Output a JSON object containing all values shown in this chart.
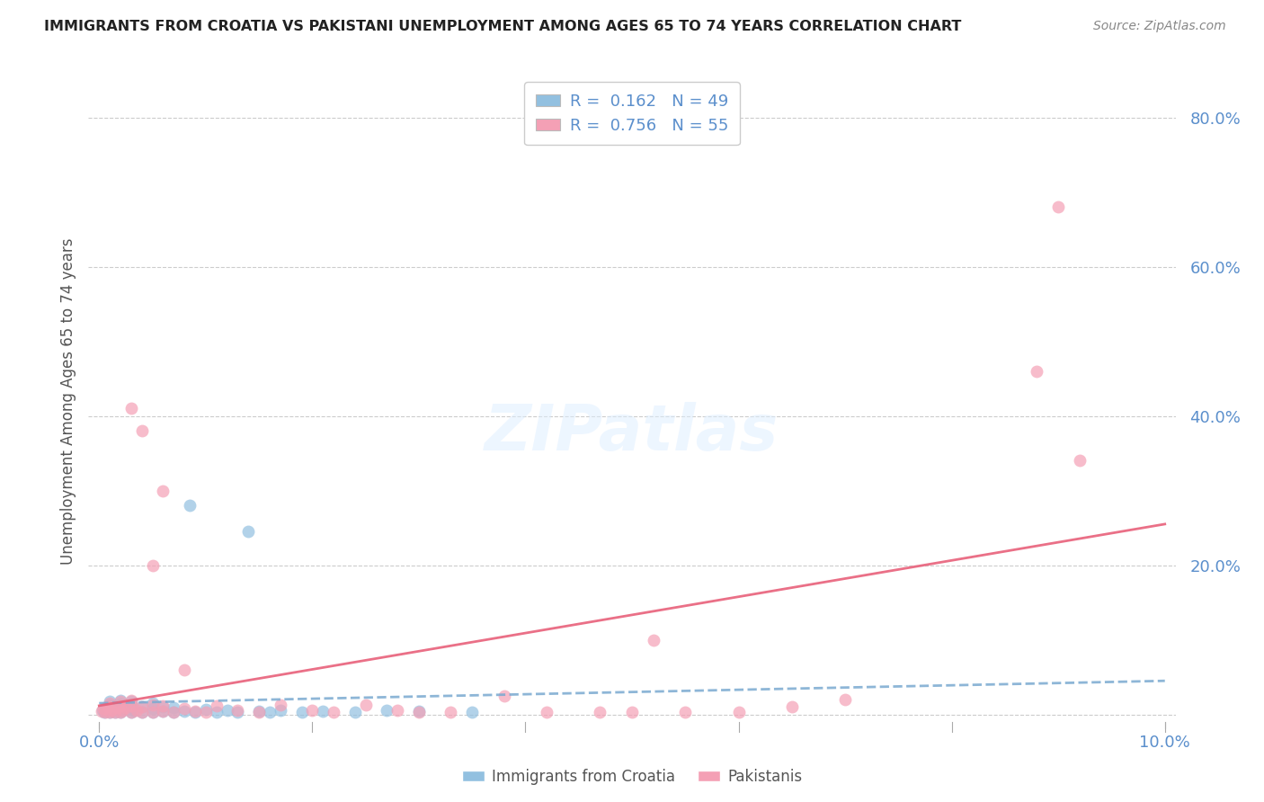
{
  "title": "IMMIGRANTS FROM CROATIA VS PAKISTANI UNEMPLOYMENT AMONG AGES 65 TO 74 YEARS CORRELATION CHART",
  "source": "Source: ZipAtlas.com",
  "ylabel_label": "Unemployment Among Ages 65 to 74 years",
  "legend_label1": "Immigrants from Croatia",
  "legend_label2": "Pakistanis",
  "R1": 0.162,
  "N1": 49,
  "R2": 0.756,
  "N2": 55,
  "color_blue": "#92C0E0",
  "color_pink": "#F4A0B5",
  "color_blue_line": "#7AAAD0",
  "color_pink_line": "#E8607A",
  "color_axis_labels": "#5B8FCC",
  "xlim": [
    -0.001,
    0.101
  ],
  "ylim": [
    -0.01,
    0.85
  ],
  "x_ticks": [
    0.0,
    0.1
  ],
  "x_tick_labels": [
    "0.0%",
    "10.0%"
  ],
  "y_ticks": [
    0.0,
    0.2,
    0.4,
    0.6,
    0.8
  ],
  "y_tick_labels": [
    "",
    "20.0%",
    "40.0%",
    "60.0%",
    "80.0%"
  ],
  "blue_scatter_x": [
    0.0003,
    0.0005,
    0.0007,
    0.001,
    0.001,
    0.001,
    0.001,
    0.0012,
    0.0013,
    0.0015,
    0.0015,
    0.0017,
    0.002,
    0.002,
    0.002,
    0.002,
    0.0022,
    0.0025,
    0.003,
    0.003,
    0.003,
    0.003,
    0.0033,
    0.004,
    0.004,
    0.005,
    0.005,
    0.005,
    0.006,
    0.006,
    0.007,
    0.007,
    0.008,
    0.009,
    0.01,
    0.011,
    0.012,
    0.013,
    0.015,
    0.016,
    0.017,
    0.019,
    0.021,
    0.024,
    0.027,
    0.03,
    0.035,
    0.0085,
    0.014
  ],
  "blue_scatter_y": [
    0.005,
    0.003,
    0.007,
    0.003,
    0.008,
    0.013,
    0.018,
    0.005,
    0.009,
    0.003,
    0.012,
    0.006,
    0.003,
    0.008,
    0.014,
    0.019,
    0.005,
    0.01,
    0.003,
    0.007,
    0.013,
    0.018,
    0.005,
    0.003,
    0.01,
    0.003,
    0.008,
    0.015,
    0.004,
    0.01,
    0.003,
    0.009,
    0.004,
    0.003,
    0.007,
    0.003,
    0.005,
    0.003,
    0.004,
    0.003,
    0.006,
    0.003,
    0.004,
    0.003,
    0.005,
    0.004,
    0.003,
    0.28,
    0.245
  ],
  "pink_scatter_x": [
    0.0002,
    0.0004,
    0.0006,
    0.0008,
    0.001,
    0.001,
    0.0012,
    0.0015,
    0.0017,
    0.002,
    0.002,
    0.002,
    0.0022,
    0.0025,
    0.003,
    0.003,
    0.003,
    0.0035,
    0.004,
    0.004,
    0.005,
    0.005,
    0.006,
    0.006,
    0.007,
    0.008,
    0.009,
    0.01,
    0.011,
    0.013,
    0.015,
    0.017,
    0.02,
    0.022,
    0.025,
    0.028,
    0.03,
    0.033,
    0.038,
    0.042,
    0.047,
    0.052,
    0.06,
    0.065,
    0.07,
    0.05,
    0.055,
    0.003,
    0.004,
    0.005,
    0.006,
    0.008,
    0.09,
    0.092,
    0.088
  ],
  "pink_scatter_y": [
    0.004,
    0.008,
    0.003,
    0.01,
    0.003,
    0.015,
    0.006,
    0.003,
    0.009,
    0.003,
    0.012,
    0.018,
    0.005,
    0.009,
    0.003,
    0.012,
    0.019,
    0.006,
    0.003,
    0.01,
    0.003,
    0.013,
    0.004,
    0.011,
    0.003,
    0.008,
    0.004,
    0.003,
    0.012,
    0.005,
    0.003,
    0.013,
    0.006,
    0.003,
    0.013,
    0.006,
    0.003,
    0.003,
    0.025,
    0.003,
    0.003,
    0.1,
    0.003,
    0.01,
    0.02,
    0.003,
    0.003,
    0.41,
    0.38,
    0.2,
    0.3,
    0.06,
    0.68,
    0.34,
    0.46
  ]
}
